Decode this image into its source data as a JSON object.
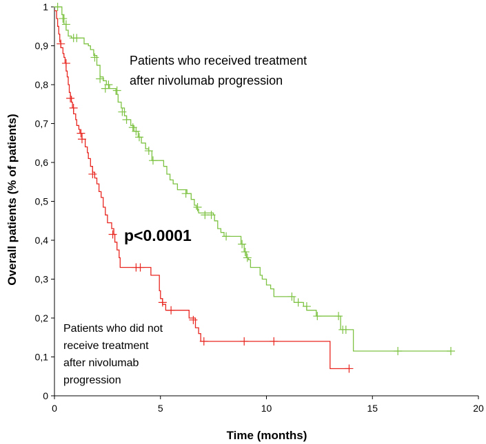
{
  "chart_data": {
    "type": "line",
    "xlabel": "Time (months)",
    "ylabel": "Overall patients (% of patients)",
    "xlim": [
      0,
      20
    ],
    "ylim": [
      0,
      1
    ],
    "x_ticks": [
      "0",
      "5",
      "10",
      "15",
      "20"
    ],
    "y_ticks": [
      "0",
      "0,1",
      "0,2",
      "0,3",
      "0,4",
      "0,5",
      "0,6",
      "0,7",
      "0,8",
      "0,9",
      "1"
    ],
    "grid": false,
    "annotations": {
      "green_label_line1": "Patients who received treatment",
      "green_label_line2": "after nivolumab progression",
      "red_label_line1": "Patients who did not",
      "red_label_line2": "receive treatment",
      "red_label_line3": "after nivolumab",
      "red_label_line4": "progression",
      "p_value": "p<0.0001"
    },
    "series": [
      {
        "color": "#7dc242",
        "points": [
          [
            0,
            1.0
          ],
          [
            0.35,
            1.0
          ],
          [
            0.35,
            0.98
          ],
          [
            0.45,
            0.955
          ],
          [
            0.55,
            0.94
          ],
          [
            0.65,
            0.925
          ],
          [
            0.8,
            0.92
          ],
          [
            1.3,
            0.92
          ],
          [
            1.4,
            0.905
          ],
          [
            1.6,
            0.9
          ],
          [
            1.7,
            0.89
          ],
          [
            1.85,
            0.875
          ],
          [
            2.0,
            0.85
          ],
          [
            2.15,
            0.82
          ],
          [
            2.3,
            0.81
          ],
          [
            2.45,
            0.8
          ],
          [
            2.6,
            0.79
          ],
          [
            2.9,
            0.775
          ],
          [
            3.0,
            0.755
          ],
          [
            3.15,
            0.74
          ],
          [
            3.3,
            0.72
          ],
          [
            3.4,
            0.71
          ],
          [
            3.6,
            0.695
          ],
          [
            3.75,
            0.68
          ],
          [
            3.95,
            0.665
          ],
          [
            4.1,
            0.65
          ],
          [
            4.3,
            0.635
          ],
          [
            4.45,
            0.63
          ],
          [
            4.6,
            0.605
          ],
          [
            5.1,
            0.605
          ],
          [
            5.15,
            0.59
          ],
          [
            5.3,
            0.57
          ],
          [
            5.45,
            0.555
          ],
          [
            5.6,
            0.545
          ],
          [
            5.8,
            0.53
          ],
          [
            6.15,
            0.53
          ],
          [
            6.25,
            0.52
          ],
          [
            6.45,
            0.505
          ],
          [
            6.6,
            0.49
          ],
          [
            6.7,
            0.48
          ],
          [
            6.8,
            0.47
          ],
          [
            7.5,
            0.465
          ],
          [
            7.55,
            0.45
          ],
          [
            7.7,
            0.43
          ],
          [
            7.85,
            0.42
          ],
          [
            8.0,
            0.41
          ],
          [
            8.6,
            0.41
          ],
          [
            8.8,
            0.39
          ],
          [
            8.95,
            0.37
          ],
          [
            9.05,
            0.355
          ],
          [
            9.15,
            0.35
          ],
          [
            9.25,
            0.33
          ],
          [
            9.6,
            0.33
          ],
          [
            9.7,
            0.31
          ],
          [
            9.8,
            0.3
          ],
          [
            10.0,
            0.285
          ],
          [
            10.2,
            0.275
          ],
          [
            10.35,
            0.255
          ],
          [
            11.2,
            0.255
          ],
          [
            11.3,
            0.24
          ],
          [
            11.65,
            0.24
          ],
          [
            11.75,
            0.23
          ],
          [
            11.9,
            0.22
          ],
          [
            12.3,
            0.22
          ],
          [
            12.35,
            0.205
          ],
          [
            13.45,
            0.205
          ],
          [
            13.5,
            0.17
          ],
          [
            14.05,
            0.17
          ],
          [
            14.1,
            0.115
          ],
          [
            18.7,
            0.115
          ]
        ],
        "censor_marks": [
          [
            0.15,
            1.0
          ],
          [
            0.4,
            0.97
          ],
          [
            0.55,
            0.955
          ],
          [
            0.9,
            0.92
          ],
          [
            1.05,
            0.92
          ],
          [
            1.9,
            0.87
          ],
          [
            2.15,
            0.815
          ],
          [
            2.4,
            0.79
          ],
          [
            2.55,
            0.8
          ],
          [
            2.95,
            0.785
          ],
          [
            3.2,
            0.73
          ],
          [
            3.4,
            0.71
          ],
          [
            3.7,
            0.69
          ],
          [
            3.85,
            0.68
          ],
          [
            4.0,
            0.665
          ],
          [
            4.45,
            0.63
          ],
          [
            4.65,
            0.605
          ],
          [
            6.2,
            0.52
          ],
          [
            6.75,
            0.485
          ],
          [
            7.1,
            0.465
          ],
          [
            7.4,
            0.465
          ],
          [
            8.1,
            0.41
          ],
          [
            8.85,
            0.39
          ],
          [
            9.0,
            0.37
          ],
          [
            9.1,
            0.355
          ],
          [
            11.2,
            0.255
          ],
          [
            11.5,
            0.24
          ],
          [
            11.9,
            0.23
          ],
          [
            12.4,
            0.205
          ],
          [
            13.4,
            0.205
          ],
          [
            13.6,
            0.17
          ],
          [
            13.75,
            0.17
          ],
          [
            16.2,
            0.115
          ],
          [
            18.7,
            0.115
          ]
        ]
      },
      {
        "color": "#e8251f",
        "points": [
          [
            0,
            0.99
          ],
          [
            0.1,
            0.97
          ],
          [
            0.15,
            0.95
          ],
          [
            0.2,
            0.93
          ],
          [
            0.25,
            0.91
          ],
          [
            0.3,
            0.895
          ],
          [
            0.4,
            0.88
          ],
          [
            0.45,
            0.87
          ],
          [
            0.5,
            0.855
          ],
          [
            0.55,
            0.835
          ],
          [
            0.6,
            0.82
          ],
          [
            0.65,
            0.8
          ],
          [
            0.7,
            0.78
          ],
          [
            0.75,
            0.77
          ],
          [
            0.8,
            0.755
          ],
          [
            0.85,
            0.74
          ],
          [
            0.9,
            0.725
          ],
          [
            1.0,
            0.71
          ],
          [
            1.05,
            0.695
          ],
          [
            1.15,
            0.685
          ],
          [
            1.2,
            0.675
          ],
          [
            1.3,
            0.66
          ],
          [
            1.45,
            0.64
          ],
          [
            1.55,
            0.625
          ],
          [
            1.6,
            0.61
          ],
          [
            1.7,
            0.59
          ],
          [
            1.8,
            0.575
          ],
          [
            1.9,
            0.56
          ],
          [
            2.0,
            0.545
          ],
          [
            2.1,
            0.525
          ],
          [
            2.2,
            0.51
          ],
          [
            2.3,
            0.485
          ],
          [
            2.4,
            0.465
          ],
          [
            2.5,
            0.445
          ],
          [
            2.7,
            0.43
          ],
          [
            2.8,
            0.415
          ],
          [
            2.85,
            0.395
          ],
          [
            2.95,
            0.375
          ],
          [
            3.05,
            0.355
          ],
          [
            3.1,
            0.33
          ],
          [
            4.5,
            0.33
          ],
          [
            4.55,
            0.31
          ],
          [
            4.9,
            0.31
          ],
          [
            4.95,
            0.27
          ],
          [
            5.0,
            0.25
          ],
          [
            5.1,
            0.235
          ],
          [
            5.25,
            0.22
          ],
          [
            6.3,
            0.22
          ],
          [
            6.35,
            0.2
          ],
          [
            6.6,
            0.2
          ],
          [
            6.65,
            0.175
          ],
          [
            6.8,
            0.16
          ],
          [
            6.9,
            0.14
          ],
          [
            12.95,
            0.14
          ],
          [
            13.0,
            0.07
          ],
          [
            13.95,
            0.07
          ]
        ],
        "censor_marks": [
          [
            0.3,
            0.905
          ],
          [
            0.55,
            0.855
          ],
          [
            0.75,
            0.765
          ],
          [
            0.9,
            0.74
          ],
          [
            1.25,
            0.675
          ],
          [
            1.3,
            0.66
          ],
          [
            1.8,
            0.57
          ],
          [
            2.75,
            0.415
          ],
          [
            3.85,
            0.33
          ],
          [
            4.05,
            0.33
          ],
          [
            5.1,
            0.24
          ],
          [
            5.5,
            0.22
          ],
          [
            6.55,
            0.195
          ],
          [
            7.05,
            0.14
          ],
          [
            8.95,
            0.14
          ],
          [
            10.35,
            0.14
          ],
          [
            13.9,
            0.07
          ]
        ]
      }
    ]
  }
}
